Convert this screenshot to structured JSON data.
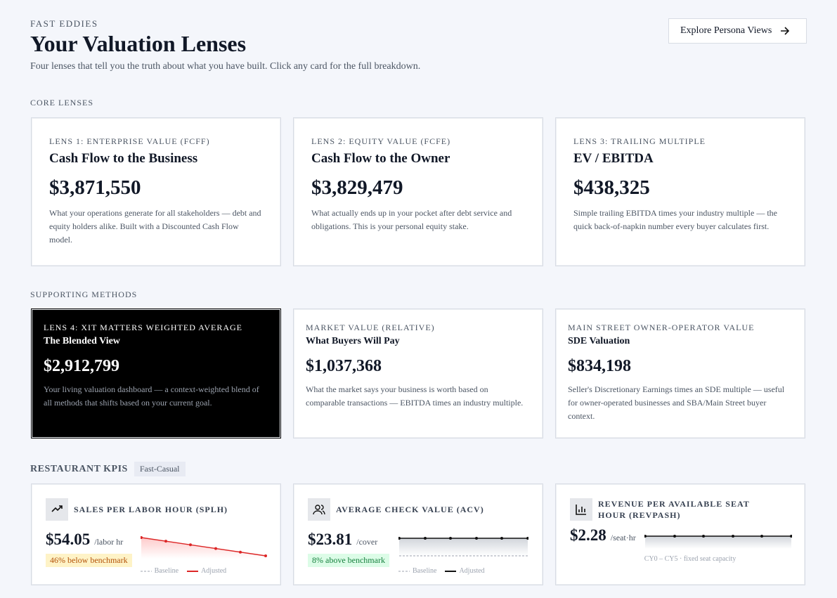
{
  "header": {
    "eyebrow": "FAST EDDIES",
    "title": "Your Valuation Lenses",
    "subtitle": "Four lenses that tell you the truth about what you have built. Click any card for the full breakdown.",
    "button": "Explore Persona Views"
  },
  "core": {
    "heading": "CORE LENSES",
    "cards": [
      {
        "label": "LENS 1: ENTERPRISE VALUE (FCFF)",
        "title": "Cash Flow to the Business",
        "value": "$3,871,550",
        "description": "What your operations generate for all stakeholders — debt and equity holders alike. Built with a Discounted Cash Flow model."
      },
      {
        "label": "LENS 2: EQUITY VALUE (FCFE)",
        "title": "Cash Flow to the Owner",
        "value": "$3,829,479",
        "description": "What actually ends up in your pocket after debt service and obligations. This is your personal equity stake."
      },
      {
        "label": "LENS 3: TRAILING MULTIPLE",
        "title": "EV / EBITDA",
        "value": "$438,325",
        "description": "Simple trailing EBITDA times your industry multiple — the quick back-of-napkin number every buyer calculates first."
      }
    ]
  },
  "supporting": {
    "heading": "SUPPORTING METHODS",
    "cards": [
      {
        "label": "LENS 4: XIT MATTERS WEIGHTED AVERAGE",
        "title": "The Blended View",
        "value": "$2,912,799",
        "description": "Your living valuation dashboard — a context-weighted blend of all methods that shifts based on your current goal."
      },
      {
        "label": "MARKET VALUE (RELATIVE)",
        "title": "What Buyers Will Pay",
        "value": "$1,037,368",
        "description": "What the market says your business is worth based on comparable transactions — EBITDA times an industry multiple."
      },
      {
        "label": "MAIN STREET OWNER-OPERATOR VALUE",
        "title": "SDE Valuation",
        "value": "$834,198",
        "description": "Seller's Discretionary Earnings times an SDE multiple — useful for owner-operated businesses and SBA/Main Street buyer context."
      }
    ]
  },
  "kpis": {
    "heading": "RESTAURANT KPIS",
    "tag": "Fast-Casual",
    "cards": [
      {
        "title": "SALES PER LABOR HOUR (SPLH)",
        "value": "$54.05",
        "unit": "/labor hr",
        "badge": "46% below benchmark",
        "legend": [
          "Baseline",
          "Adjusted"
        ]
      },
      {
        "title": "AVERAGE CHECK VALUE (ACV)",
        "value": "$23.81",
        "unit": "/cover",
        "badge": "8% above benchmark",
        "legend": [
          "Baseline",
          "Adjusted"
        ]
      },
      {
        "title": "REVENUE PER AVAILABLE SEAT HOUR (REVPASH)",
        "value": "$2.28",
        "unit": "/seat·hr",
        "note": "CY0 – CY5 · fixed seat capacity"
      }
    ]
  }
}
